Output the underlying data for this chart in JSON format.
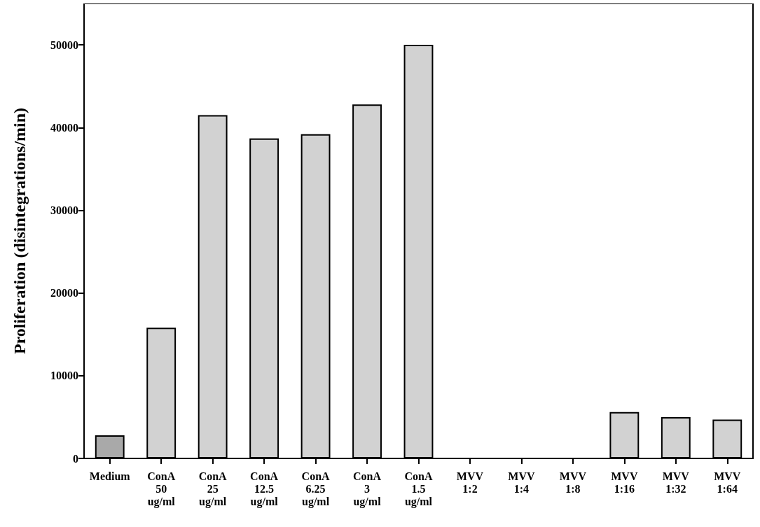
{
  "chart_data": {
    "type": "bar",
    "ylabel": "Proliferation (disintegrations/min)",
    "categories": [
      "Medium",
      "ConA\n50\nug/ml",
      "ConA\n25\nug/ml",
      "ConA\n12.5\nug/ml",
      "ConA\n6.25\nug/ml",
      "ConA\n3\nug/ml",
      "ConA\n1.5\nug/ml",
      "MVV\n1:2",
      "MVV\n1:4",
      "MVV\n1:8",
      "MVV\n1:16",
      "MVV\n1:32",
      "MVV\n1:64"
    ],
    "values": [
      2800,
      15800,
      41500,
      38700,
      39200,
      42800,
      50000,
      null,
      null,
      null,
      5600,
      5000,
      4700
    ],
    "colors": [
      "#a9a9a9",
      "#d2d2d2",
      "#d2d2d2",
      "#d2d2d2",
      "#d2d2d2",
      "#d2d2d2",
      "#d2d2d2",
      "#d2d2d2",
      "#d2d2d2",
      "#d2d2d2",
      "#d2d2d2",
      "#d2d2d2",
      "#d2d2d2"
    ],
    "ylim": [
      0,
      55000
    ],
    "yticks": [
      0,
      10000,
      20000,
      30000,
      40000,
      50000
    ],
    "grid": false
  }
}
